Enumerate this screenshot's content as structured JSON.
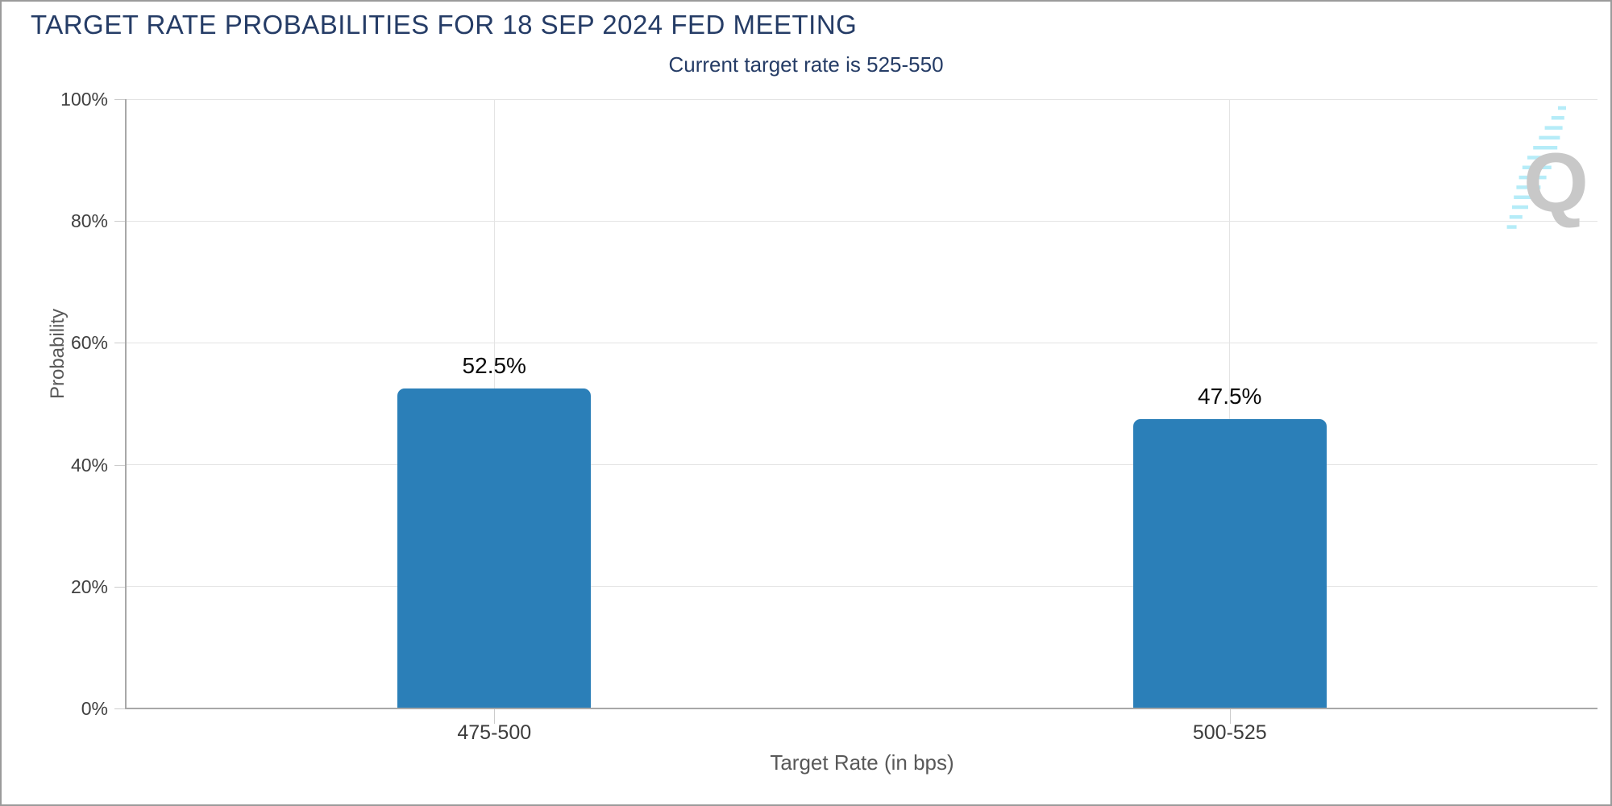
{
  "header": {
    "title": "TARGET RATE PROBABILITIES FOR 18 SEP 2024 FED MEETING",
    "subtitle": "Current target rate is 525-550"
  },
  "chart_data": {
    "type": "bar",
    "title": "TARGET RATE PROBABILITIES FOR 18 SEP 2024 FED MEETING",
    "subtitle": "Current target rate is 525-550",
    "categories": [
      "475-500",
      "500-525"
    ],
    "values": [
      52.5,
      47.5
    ],
    "value_labels": [
      "52.5%",
      "47.5%"
    ],
    "xlabel": "Target Rate (in bps)",
    "ylabel": "Probability",
    "ylim": [
      0,
      100
    ],
    "yticks": [
      {
        "value": 0,
        "label": "0%"
      },
      {
        "value": 20,
        "label": "20%"
      },
      {
        "value": 40,
        "label": "40%"
      },
      {
        "value": 60,
        "label": "60%"
      },
      {
        "value": 80,
        "label": "80%"
      },
      {
        "value": 100,
        "label": "100%"
      }
    ],
    "grid": "horizontal lines at each y tick plus one vertical line per category center",
    "legend": "none",
    "bar_color": "#2b7fb8"
  },
  "colors": {
    "title_navy": "#253c66",
    "bar_blue": "#2b7fb8",
    "gridline": "#e4e4e4",
    "axis_line": "#a8a8a8",
    "tick_text": "#404040",
    "axis_title_text": "#595959",
    "value_label_text": "#0a0a0a",
    "frame_border": "#9b9b9b",
    "watermark_gray": "#c8c8c8",
    "watermark_cyan": "#b5ecf8"
  },
  "watermark": {
    "glyph": "Q",
    "description": "QuikStrike logo: gray Q with diagonal streak of light-cyan dashes"
  }
}
